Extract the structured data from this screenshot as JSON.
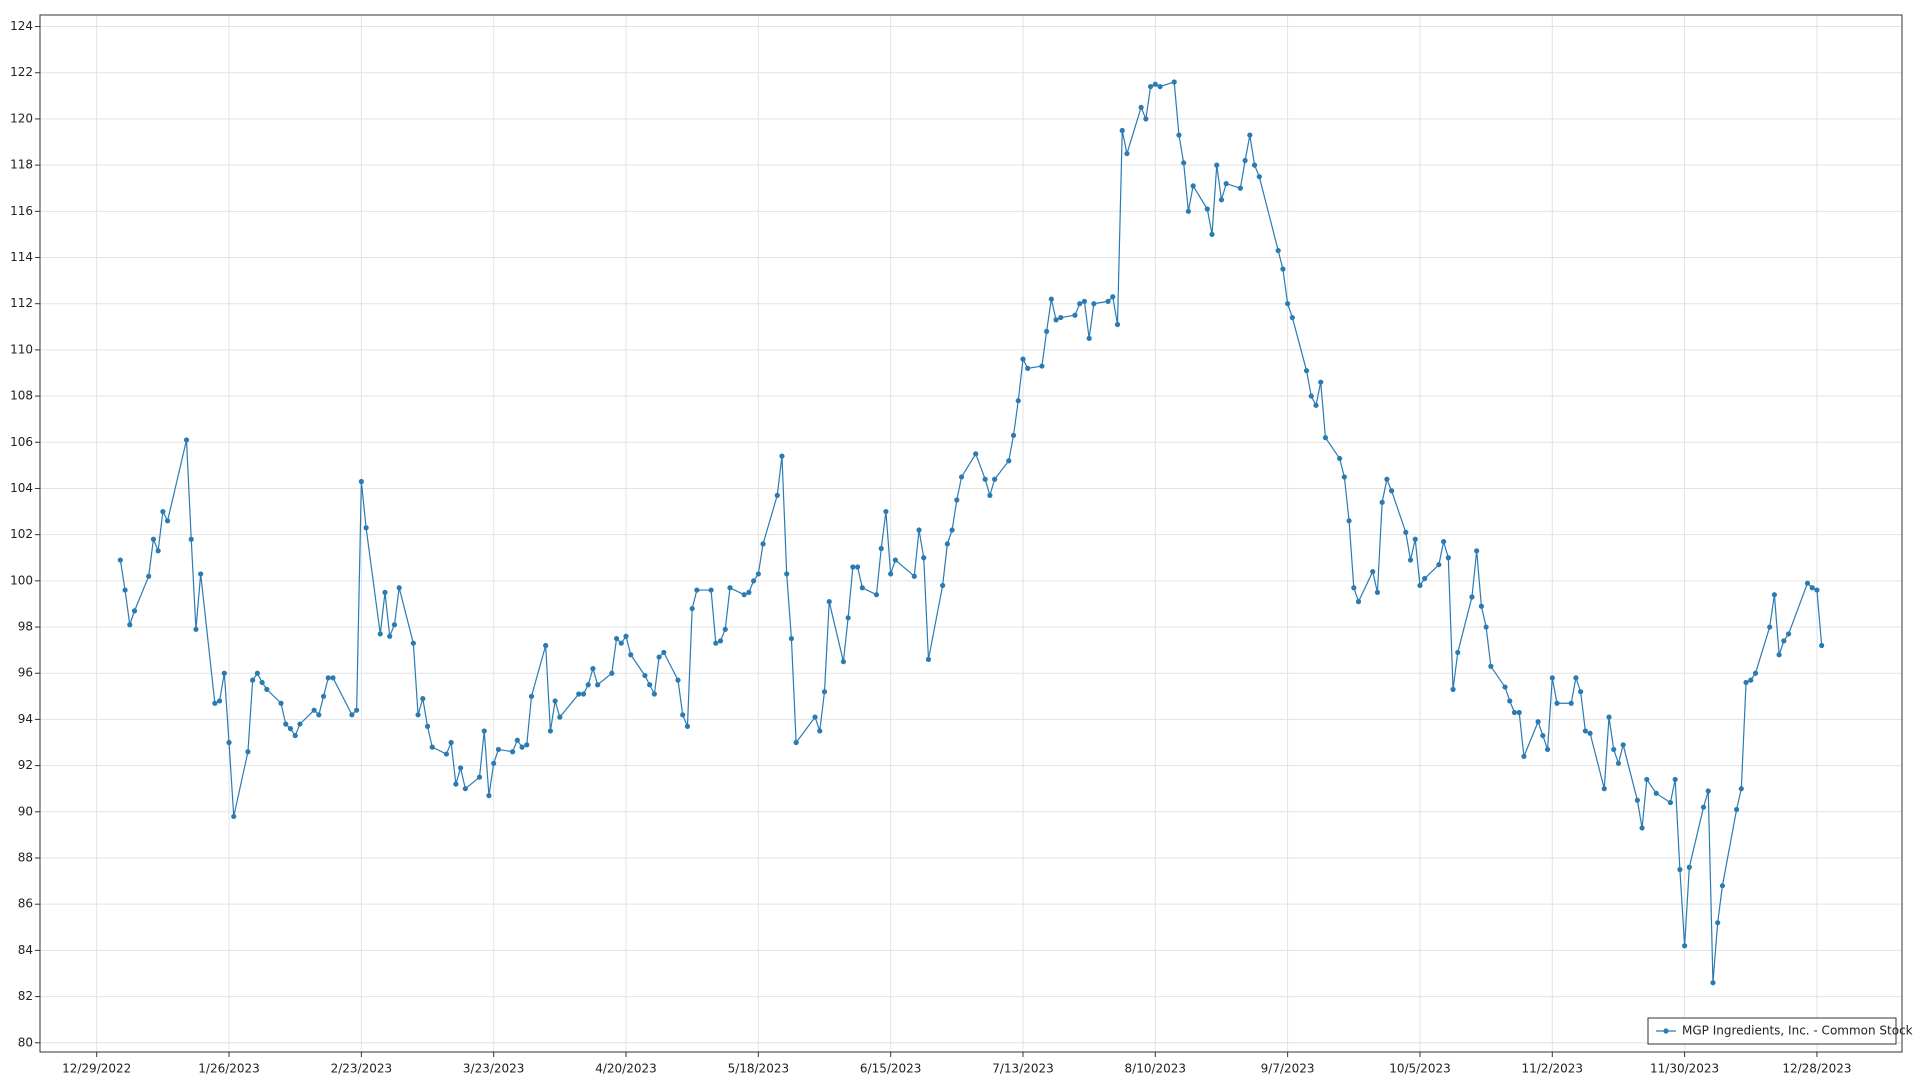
{
  "chart_data": {
    "type": "line",
    "x": [
      "1/3/2023",
      "1/4/2023",
      "1/5/2023",
      "1/6/2023",
      "1/9/2023",
      "1/10/2023",
      "1/11/2023",
      "1/12/2023",
      "1/13/2023",
      "1/17/2023",
      "1/18/2023",
      "1/19/2023",
      "1/20/2023",
      "1/23/2023",
      "1/24/2023",
      "1/25/2023",
      "1/26/2023",
      "1/27/2023",
      "1/30/2023",
      "1/31/2023",
      "2/1/2023",
      "2/2/2023",
      "2/3/2023",
      "2/6/2023",
      "2/7/2023",
      "2/8/2023",
      "2/9/2023",
      "2/10/2023",
      "2/13/2023",
      "2/14/2023",
      "2/15/2023",
      "2/16/2023",
      "2/17/2023",
      "2/21/2023",
      "2/22/2023",
      "2/23/2023",
      "2/24/2023",
      "2/27/2023",
      "2/28/2023",
      "3/1/2023",
      "3/2/2023",
      "3/3/2023",
      "3/6/2023",
      "3/7/2023",
      "3/8/2023",
      "3/9/2023",
      "3/10/2023",
      "3/13/2023",
      "3/14/2023",
      "3/15/2023",
      "3/16/2023",
      "3/17/2023",
      "3/20/2023",
      "3/21/2023",
      "3/22/2023",
      "3/23/2023",
      "3/24/2023",
      "3/27/2023",
      "3/28/2023",
      "3/29/2023",
      "3/30/2023",
      "3/31/2023",
      "4/3/2023",
      "4/4/2023",
      "4/5/2023",
      "4/6/2023",
      "4/10/2023",
      "4/11/2023",
      "4/12/2023",
      "4/13/2023",
      "4/14/2023",
      "4/17/2023",
      "4/18/2023",
      "4/19/2023",
      "4/20/2023",
      "4/21/2023",
      "4/24/2023",
      "4/25/2023",
      "4/26/2023",
      "4/27/2023",
      "4/28/2023",
      "5/1/2023",
      "5/2/2023",
      "5/3/2023",
      "5/4/2023",
      "5/5/2023",
      "5/8/2023",
      "5/9/2023",
      "5/10/2023",
      "5/11/2023",
      "5/12/2023",
      "5/15/2023",
      "5/16/2023",
      "5/17/2023",
      "5/18/2023",
      "5/19/2023",
      "5/22/2023",
      "5/23/2023",
      "5/24/2023",
      "5/25/2023",
      "5/26/2023",
      "5/30/2023",
      "5/31/2023",
      "6/1/2023",
      "6/2/2023",
      "6/5/2023",
      "6/6/2023",
      "6/7/2023",
      "6/8/2023",
      "6/9/2023",
      "6/12/2023",
      "6/13/2023",
      "6/14/2023",
      "6/15/2023",
      "6/16/2023",
      "6/20/2023",
      "6/21/2023",
      "6/22/2023",
      "6/23/2023",
      "6/26/2023",
      "6/27/2023",
      "6/28/2023",
      "6/29/2023",
      "6/30/2023",
      "7/3/2023",
      "7/5/2023",
      "7/6/2023",
      "7/7/2023",
      "7/10/2023",
      "7/11/2023",
      "7/12/2023",
      "7/13/2023",
      "7/14/2023",
      "7/17/2023",
      "7/18/2023",
      "7/19/2023",
      "7/20/2023",
      "7/21/2023",
      "7/24/2023",
      "7/25/2023",
      "7/26/2023",
      "7/27/2023",
      "7/28/2023",
      "7/31/2023",
      "8/1/2023",
      "8/2/2023",
      "8/3/2023",
      "8/4/2023",
      "8/7/2023",
      "8/8/2023",
      "8/9/2023",
      "8/10/2023",
      "8/11/2023",
      "8/14/2023",
      "8/15/2023",
      "8/16/2023",
      "8/17/2023",
      "8/18/2023",
      "8/21/2023",
      "8/22/2023",
      "8/23/2023",
      "8/24/2023",
      "8/25/2023",
      "8/28/2023",
      "8/29/2023",
      "8/30/2023",
      "8/31/2023",
      "9/1/2023",
      "9/5/2023",
      "9/6/2023",
      "9/7/2023",
      "9/8/2023",
      "9/11/2023",
      "9/12/2023",
      "9/13/2023",
      "9/14/2023",
      "9/15/2023",
      "9/18/2023",
      "9/19/2023",
      "9/20/2023",
      "9/21/2023",
      "9/22/2023",
      "9/25/2023",
      "9/26/2023",
      "9/27/2023",
      "9/28/2023",
      "9/29/2023",
      "10/2/2023",
      "10/3/2023",
      "10/4/2023",
      "10/5/2023",
      "10/6/2023",
      "10/9/2023",
      "10/10/2023",
      "10/11/2023",
      "10/12/2023",
      "10/13/2023",
      "10/16/2023",
      "10/17/2023",
      "10/18/2023",
      "10/19/2023",
      "10/20/2023",
      "10/23/2023",
      "10/24/2023",
      "10/25/2023",
      "10/26/2023",
      "10/27/2023",
      "10/30/2023",
      "10/31/2023",
      "11/1/2023",
      "11/2/2023",
      "11/3/2023",
      "11/6/2023",
      "11/7/2023",
      "11/8/2023",
      "11/9/2023",
      "11/10/2023",
      "11/13/2023",
      "11/14/2023",
      "11/15/2023",
      "11/16/2023",
      "11/17/2023",
      "11/20/2023",
      "11/21/2023",
      "11/22/2023",
      "11/24/2023",
      "11/27/2023",
      "11/28/2023",
      "11/29/2023",
      "11/30/2023",
      "12/1/2023",
      "12/4/2023",
      "12/5/2023",
      "12/6/2023",
      "12/7/2023",
      "12/8/2023",
      "12/11/2023",
      "12/12/2023",
      "12/13/2023",
      "12/14/2023",
      "12/15/2023",
      "12/18/2023",
      "12/19/2023",
      "12/20/2023",
      "12/21/2023",
      "12/22/2023",
      "12/26/2023",
      "12/27/2023",
      "12/28/2023",
      "12/29/2023"
    ],
    "series": [
      {
        "name": "MGP Ingredients, Inc. - Common Stock",
        "color": "#2b7bb3",
        "values": [
          100.9,
          99.6,
          98.1,
          98.7,
          100.2,
          101.8,
          101.3,
          103.0,
          102.6,
          106.1,
          101.8,
          97.9,
          100.3,
          94.7,
          94.8,
          96.0,
          93.0,
          89.8,
          92.6,
          95.7,
          96.0,
          95.6,
          95.3,
          94.7,
          93.8,
          93.6,
          93.3,
          93.8,
          94.4,
          94.2,
          95.0,
          95.8,
          95.8,
          94.2,
          94.4,
          104.3,
          102.3,
          97.7,
          99.5,
          97.6,
          98.1,
          99.7,
          97.3,
          94.2,
          94.9,
          93.7,
          92.8,
          92.5,
          93.0,
          91.2,
          91.9,
          91.0,
          91.5,
          93.5,
          90.7,
          92.1,
          92.7,
          92.6,
          93.1,
          92.8,
          92.9,
          95.0,
          97.2,
          93.5,
          94.8,
          94.1,
          95.1,
          95.1,
          95.5,
          96.2,
          95.5,
          96.0,
          97.5,
          97.3,
          97.6,
          96.8,
          95.9,
          95.5,
          95.1,
          96.7,
          96.9,
          95.7,
          94.2,
          93.7,
          98.8,
          99.6,
          99.6,
          97.3,
          97.4,
          97.9,
          99.7,
          99.4,
          99.5,
          100.0,
          100.3,
          101.6,
          103.7,
          105.4,
          100.3,
          97.5,
          93.0,
          94.1,
          93.5,
          95.2,
          99.1,
          96.5,
          98.4,
          100.6,
          100.6,
          99.7,
          99.4,
          101.4,
          103.0,
          100.3,
          100.9,
          100.2,
          102.2,
          101.0,
          96.6,
          99.8,
          101.6,
          102.2,
          103.5,
          104.5,
          105.5,
          104.4,
          103.7,
          104.4,
          105.2,
          106.3,
          107.8,
          109.6,
          109.2,
          109.3,
          110.8,
          112.2,
          111.3,
          111.4,
          111.5,
          112.0,
          112.1,
          110.5,
          112.0,
          112.1,
          112.3,
          111.1,
          119.5,
          118.5,
          120.5,
          120.0,
          121.4,
          121.5,
          121.4,
          121.6,
          119.3,
          118.1,
          116.0,
          117.1,
          116.1,
          115.0,
          118.0,
          116.5,
          117.2,
          117.0,
          118.2,
          119.3,
          118.0,
          117.5,
          114.3,
          113.5,
          112.0,
          111.4,
          109.1,
          108.0,
          107.6,
          108.6,
          106.2,
          105.3,
          104.5,
          102.6,
          99.7,
          99.1,
          100.4,
          99.5,
          103.4,
          104.4,
          103.9,
          102.1,
          100.9,
          101.8,
          99.8,
          100.1,
          100.7,
          101.7,
          101.0,
          95.3,
          96.9,
          99.3,
          101.3,
          98.9,
          98.0,
          96.3,
          95.4,
          94.8,
          94.3,
          94.3,
          92.4,
          93.9,
          93.3,
          92.7,
          95.8,
          94.7,
          94.7,
          95.8,
          95.2,
          93.5,
          93.4,
          91.0,
          94.1,
          92.7,
          92.1,
          92.9,
          90.5,
          89.3,
          91.4,
          90.8,
          90.4,
          91.4,
          87.5,
          84.2,
          87.6,
          90.2,
          90.9,
          82.6,
          85.2,
          86.8,
          90.1,
          91.0,
          95.6,
          95.7,
          96.0,
          98.0,
          99.4,
          96.8,
          97.4,
          97.7,
          99.9,
          99.7,
          99.6,
          97.2
        ]
      }
    ],
    "xlim": [
      "12/17/2022",
      "1/15/2024"
    ],
    "xticks": [
      "12/29/2022",
      "1/26/2023",
      "2/23/2023",
      "3/23/2023",
      "4/20/2023",
      "5/18/2023",
      "6/15/2023",
      "7/13/2023",
      "8/10/2023",
      "9/7/2023",
      "10/5/2023",
      "11/2/2023",
      "11/30/2023",
      "12/28/2023"
    ],
    "ylim": [
      79.6,
      124.5
    ],
    "yticks": [
      80,
      82,
      84,
      86,
      88,
      90,
      92,
      94,
      96,
      98,
      100,
      102,
      104,
      106,
      108,
      110,
      112,
      114,
      116,
      118,
      120,
      122,
      124
    ],
    "grid": true,
    "legend": "lower right"
  }
}
